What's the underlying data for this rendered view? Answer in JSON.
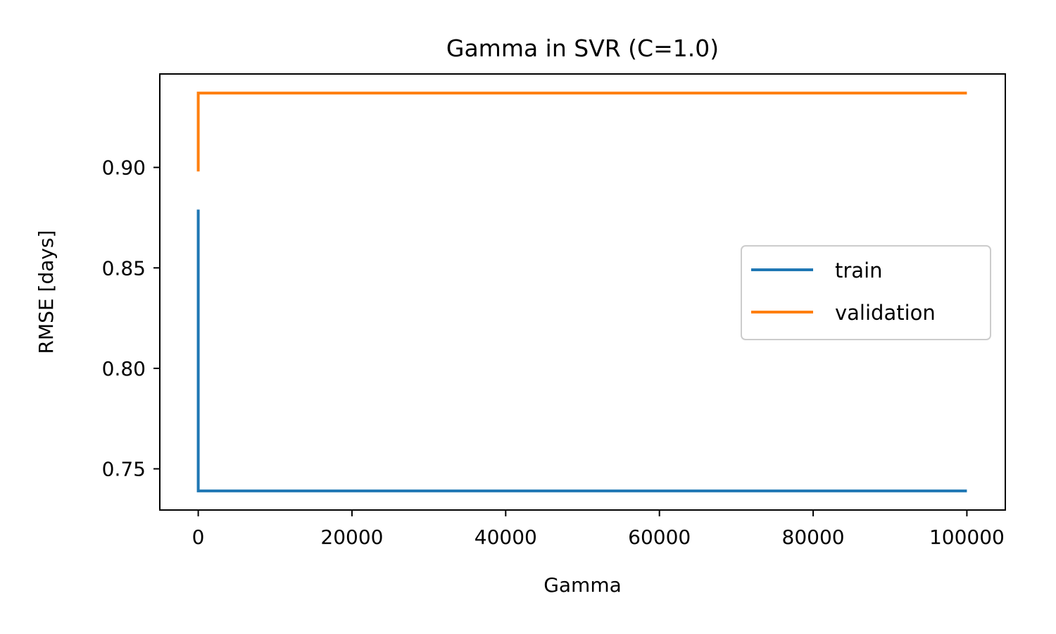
{
  "chart_data": {
    "type": "line",
    "title": "Gamma in SVR (C=1.0)",
    "xlabel": "Gamma",
    "ylabel": "RMSE [days]",
    "xlim": [
      -5000,
      105000
    ],
    "ylim": [
      0.7295,
      0.9465
    ],
    "xticks": [
      0,
      20000,
      40000,
      60000,
      80000,
      100000
    ],
    "yticks": [
      0.75,
      0.8,
      0.85,
      0.9
    ],
    "ytick_labels": [
      "0.75",
      "0.80",
      "0.85",
      "0.90"
    ],
    "grid": false,
    "legend_position": "center-right",
    "series": [
      {
        "name": "train",
        "color": "#1f77b4",
        "x": [
          0.0001,
          0.001,
          0.01,
          0.1,
          1,
          10,
          100,
          1000,
          10000,
          100000
        ],
        "y": [
          0.879,
          0.8,
          0.745,
          0.739,
          0.739,
          0.739,
          0.739,
          0.739,
          0.739,
          0.739
        ]
      },
      {
        "name": "validation",
        "color": "#ff7f0e",
        "x": [
          0.0001,
          0.001,
          0.01,
          0.1,
          1,
          10,
          100,
          1000,
          10000,
          100000
        ],
        "y": [
          0.898,
          0.92,
          0.935,
          0.937,
          0.937,
          0.937,
          0.937,
          0.937,
          0.937,
          0.937
        ]
      }
    ]
  }
}
